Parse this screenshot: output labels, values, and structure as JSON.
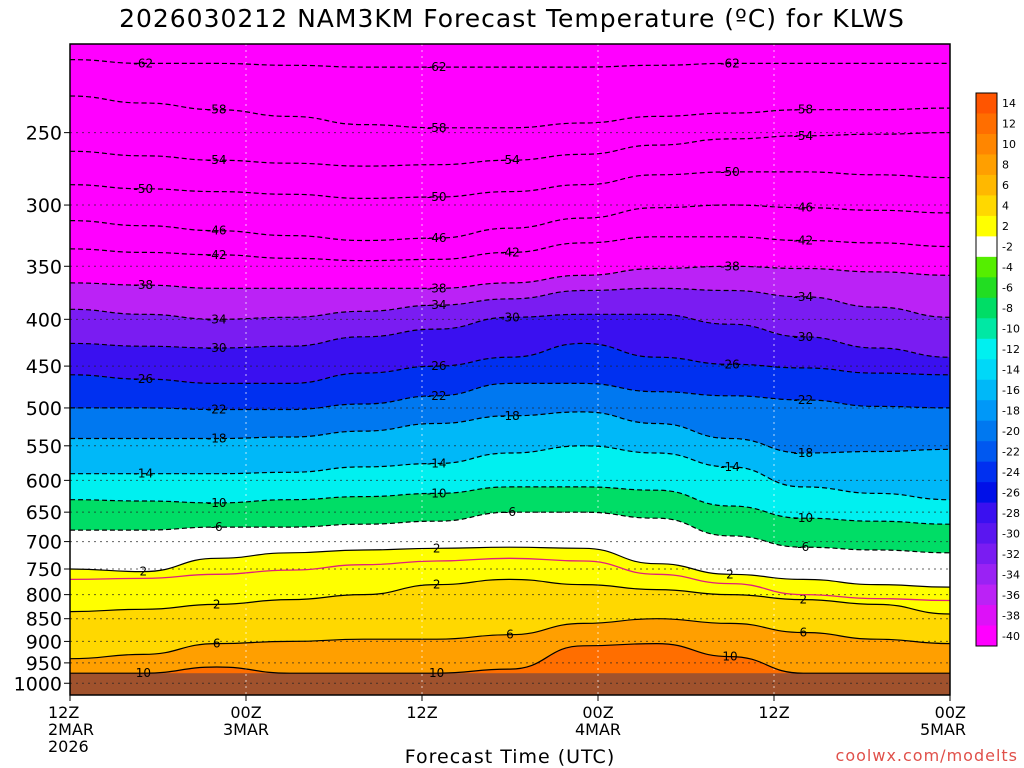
{
  "chart_data": {
    "type": "heatmap",
    "title": "2026030212 NAM3KM Forecast Temperature (ºC) for KLWS",
    "xlabel": "Forecast Time (UTC)",
    "ylabel": "",
    "x_ticks": [
      {
        "lines": [
          "12Z",
          "2MAR",
          "2026"
        ],
        "hours": 0
      },
      {
        "lines": [
          "00Z",
          "3MAR"
        ],
        "hours": 12
      },
      {
        "lines": [
          "12Z"
        ],
        "hours": 24
      },
      {
        "lines": [
          "00Z",
          "4MAR"
        ],
        "hours": 36
      },
      {
        "lines": [
          "12Z"
        ],
        "hours": 48
      },
      {
        "lines": [
          "00Z",
          "5MAR"
        ],
        "hours": 60
      }
    ],
    "xlim_hours": [
      0,
      60
    ],
    "y_ticks": [
      250,
      300,
      350,
      400,
      450,
      500,
      550,
      600,
      650,
      700,
      750,
      800,
      850,
      900,
      950,
      1000
    ],
    "ylim_hpa": [
      200,
      1030
    ],
    "y_scale": "log-pressure",
    "surface_pressure_hpa": 975,
    "colorbar": {
      "levels": [
        14,
        12,
        10,
        8,
        6,
        4,
        2,
        -2,
        -4,
        -6,
        -8,
        -10,
        -12,
        -14,
        -16,
        -18,
        -20,
        -22,
        -24,
        -26,
        -28,
        -30,
        -32,
        -34,
        -36,
        -38,
        -40
      ],
      "colors": [
        "#ff5500",
        "#ff6e00",
        "#ff8600",
        "#ff9f00",
        "#ffb800",
        "#ffd800",
        "#ffff00",
        "#ffffff",
        "#55ee00",
        "#22dd22",
        "#00dd66",
        "#00e8a4",
        "#00f0f0",
        "#00d8f8",
        "#00b8f8",
        "#0098f8",
        "#0078f0",
        "#0058f0",
        "#0030f0",
        "#0010e8",
        "#3a10f0",
        "#5a16f0",
        "#7a1cf2",
        "#9a22f4",
        "#bb22f6",
        "#dd11f8",
        "#ff00ff"
      ]
    },
    "contours": [
      {
        "value": -62,
        "label": "-62",
        "pressure_hpa": [
          208,
          210,
          210,
          211,
          212,
          212,
          212,
          212,
          211,
          210,
          210,
          210,
          210
        ]
      },
      {
        "value": -58,
        "label": "-58",
        "pressure_hpa": [
          228,
          232,
          236,
          240,
          245,
          247,
          247,
          244,
          240,
          238,
          236,
          236,
          235
        ]
      },
      {
        "value": -54,
        "label": "-54",
        "pressure_hpa": [
          262,
          265,
          268,
          270,
          272,
          271,
          268,
          264,
          258,
          254,
          252,
          251,
          250
        ]
      },
      {
        "value": -50,
        "label": "-50",
        "pressure_hpa": [
          285,
          288,
          290,
          292,
          295,
          294,
          290,
          285,
          278,
          276,
          276,
          278,
          280
        ]
      },
      {
        "value": -46,
        "label": "-46",
        "pressure_hpa": [
          312,
          316,
          320,
          324,
          328,
          326,
          318,
          310,
          302,
          300,
          302,
          304,
          306
        ]
      },
      {
        "value": -42,
        "label": "-42",
        "pressure_hpa": [
          335,
          338,
          340,
          343,
          345,
          344,
          338,
          330,
          325,
          325,
          328,
          330,
          333
        ]
      },
      {
        "value": -38,
        "label": "-38",
        "pressure_hpa": [
          365,
          367,
          370,
          370,
          370,
          370,
          365,
          358,
          352,
          350,
          352,
          355,
          358
        ]
      },
      {
        "value": -34,
        "label": "-34",
        "pressure_hpa": [
          390,
          395,
          400,
          398,
          392,
          386,
          380,
          372,
          370,
          372,
          378,
          388,
          398
        ]
      },
      {
        "value": -30,
        "label": "-30",
        "pressure_hpa": [
          425,
          428,
          430,
          428,
          418,
          410,
          398,
          395,
          395,
          405,
          418,
          430,
          440
        ]
      },
      {
        "value": -26,
        "label": "-26",
        "pressure_hpa": [
          460,
          465,
          470,
          470,
          458,
          450,
          440,
          425,
          440,
          448,
          452,
          458,
          460
        ]
      },
      {
        "value": -22,
        "label": "-22",
        "pressure_hpa": [
          500,
          500,
          502,
          502,
          495,
          485,
          470,
          470,
          480,
          485,
          490,
          498,
          500
        ]
      },
      {
        "value": -18,
        "label": "-18",
        "pressure_hpa": [
          540,
          540,
          540,
          538,
          530,
          520,
          510,
          505,
          520,
          540,
          560,
          558,
          555
        ]
      },
      {
        "value": -14,
        "label": "-14",
        "pressure_hpa": [
          590,
          590,
          590,
          588,
          580,
          575,
          560,
          550,
          560,
          580,
          610,
          620,
          630
        ]
      },
      {
        "value": -10,
        "label": "-10",
        "pressure_hpa": [
          630,
          632,
          635,
          630,
          625,
          620,
          610,
          610,
          615,
          640,
          660,
          665,
          670
        ]
      },
      {
        "value": -6,
        "label": "-6",
        "pressure_hpa": [
          680,
          680,
          675,
          675,
          670,
          665,
          650,
          650,
          660,
          690,
          710,
          715,
          720
        ]
      },
      {
        "value": 2,
        "label": "2",
        "pressure_hpa": [
          750,
          755,
          730,
          720,
          715,
          712,
          710,
          712,
          740,
          760,
          770,
          780,
          785
        ]
      },
      {
        "value": 2,
        "label": "2",
        "pressure_hpa": [
          835,
          830,
          820,
          810,
          800,
          780,
          770,
          780,
          790,
          800,
          810,
          820,
          840
        ]
      },
      {
        "value": 6,
        "label": "6",
        "pressure_hpa": [
          940,
          930,
          905,
          900,
          895,
          895,
          885,
          860,
          850,
          860,
          880,
          895,
          905
        ]
      },
      {
        "value": 10,
        "label": "10",
        "pressure_hpa": [
          975,
          975,
          960,
          975,
          975,
          975,
          965,
          910,
          905,
          935,
          975,
          975,
          975
        ]
      }
    ],
    "freezing_line": {
      "value": 0,
      "pressure_hpa": [
        770,
        768,
        760,
        752,
        742,
        735,
        730,
        735,
        760,
        778,
        800,
        808,
        812
      ]
    },
    "credit": "coolwx.com/modelts"
  }
}
